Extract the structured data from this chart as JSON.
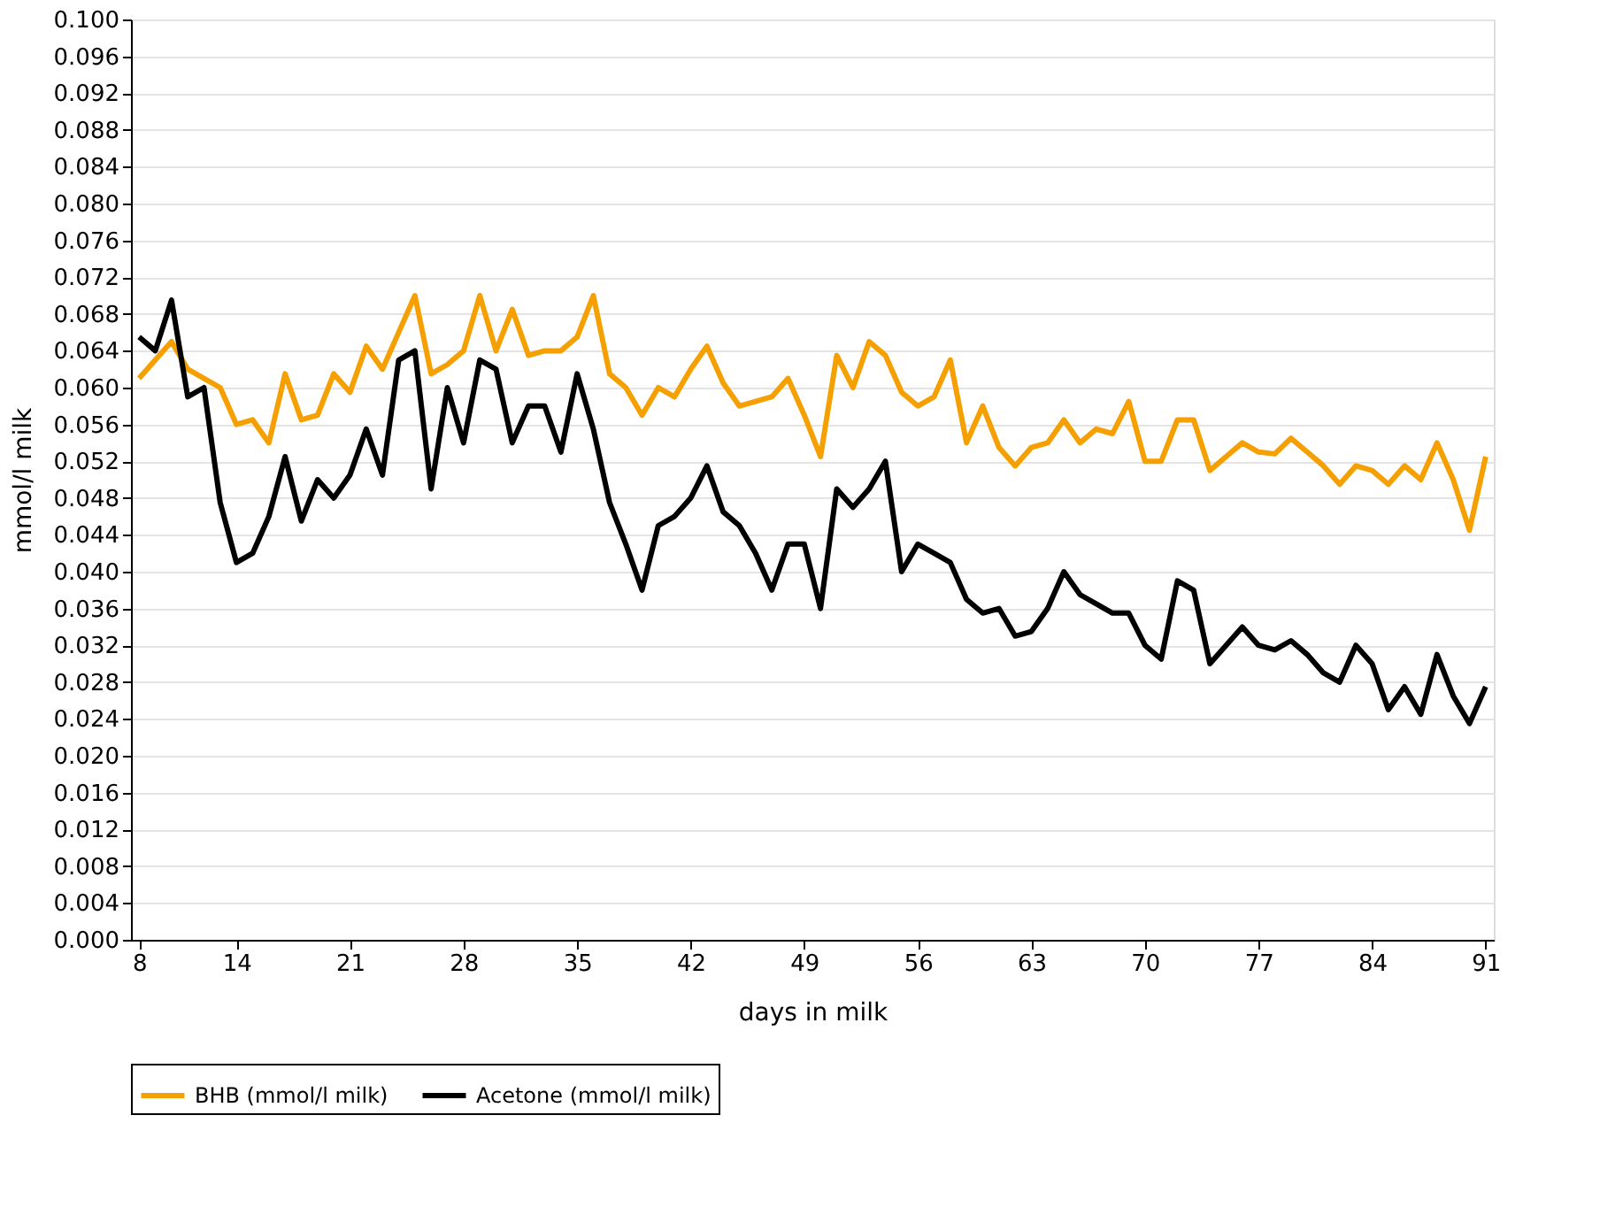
{
  "chart_data": {
    "type": "line",
    "xlabel": "days in milk",
    "ylabel": "mmol/l milk",
    "x": [
      8,
      9,
      10,
      11,
      12,
      13,
      14,
      15,
      16,
      17,
      18,
      19,
      20,
      21,
      22,
      23,
      24,
      25,
      26,
      27,
      28,
      29,
      30,
      31,
      32,
      33,
      34,
      35,
      36,
      37,
      38,
      39,
      40,
      41,
      42,
      43,
      44,
      45,
      46,
      47,
      48,
      49,
      50,
      51,
      52,
      53,
      54,
      55,
      56,
      57,
      58,
      59,
      60,
      61,
      62,
      63,
      64,
      65,
      66,
      67,
      68,
      69,
      70,
      71,
      72,
      73,
      74,
      75,
      76,
      77,
      78,
      79,
      80,
      81,
      82,
      83,
      84,
      85,
      86,
      87,
      88,
      89,
      90,
      91
    ],
    "series": [
      {
        "name": "BHB (mmol/l milk)",
        "color": "#f5a000",
        "values": [
          0.061,
          0.063,
          0.065,
          0.062,
          0.061,
          0.06,
          0.056,
          0.0565,
          0.054,
          0.0615,
          0.0565,
          0.057,
          0.0615,
          0.0595,
          0.0645,
          0.062,
          0.066,
          0.07,
          0.0615,
          0.0625,
          0.064,
          0.07,
          0.064,
          0.0685,
          0.0635,
          0.064,
          0.064,
          0.0655,
          0.07,
          0.0615,
          0.06,
          0.057,
          0.06,
          0.059,
          0.062,
          0.0645,
          0.0605,
          0.058,
          0.0585,
          0.059,
          0.061,
          0.057,
          0.0525,
          0.0635,
          0.06,
          0.065,
          0.0635,
          0.0595,
          0.058,
          0.059,
          0.063,
          0.054,
          0.058,
          0.0535,
          0.0515,
          0.0535,
          0.054,
          0.0565,
          0.054,
          0.0555,
          0.055,
          0.0585,
          0.052,
          0.052,
          0.0565,
          0.0565,
          0.051,
          0.0525,
          0.054,
          0.053,
          0.0528,
          0.0545,
          0.053,
          0.0515,
          0.0495,
          0.0515,
          0.051,
          0.0495,
          0.0515,
          0.05,
          0.054,
          0.05,
          0.0445,
          0.0525
        ]
      },
      {
        "name": "Acetone (mmol/l milk)",
        "color": "#000000",
        "values": [
          0.0655,
          0.064,
          0.0695,
          0.059,
          0.06,
          0.0475,
          0.041,
          0.042,
          0.046,
          0.0525,
          0.0455,
          0.05,
          0.048,
          0.0505,
          0.0555,
          0.0505,
          0.063,
          0.064,
          0.049,
          0.06,
          0.054,
          0.063,
          0.062,
          0.054,
          0.058,
          0.058,
          0.053,
          0.0615,
          0.0555,
          0.0475,
          0.043,
          0.038,
          0.045,
          0.046,
          0.048,
          0.0515,
          0.0465,
          0.045,
          0.042,
          0.038,
          0.043,
          0.043,
          0.036,
          0.049,
          0.047,
          0.049,
          0.052,
          0.04,
          0.043,
          0.042,
          0.041,
          0.037,
          0.0355,
          0.036,
          0.033,
          0.0335,
          0.036,
          0.04,
          0.0375,
          0.0365,
          0.0355,
          0.0355,
          0.032,
          0.0305,
          0.039,
          0.038,
          0.03,
          0.032,
          0.034,
          0.032,
          0.0315,
          0.0325,
          0.031,
          0.029,
          0.028,
          0.032,
          0.03,
          0.025,
          0.0275,
          0.0245,
          0.031,
          0.0265,
          0.0235,
          0.0275
        ]
      }
    ],
    "xlim": [
      7.5,
      91.5
    ],
    "xticks": [
      8,
      14,
      21,
      28,
      35,
      42,
      49,
      56,
      63,
      70,
      77,
      84,
      91
    ],
    "ylim": [
      0,
      0.1
    ],
    "yticks": [
      {
        "value": 0,
        "label": "0.000"
      },
      {
        "value": 0.004,
        "label": "0.004"
      },
      {
        "value": 0.008,
        "label": "0.008"
      },
      {
        "value": 0.012,
        "label": "0.012"
      },
      {
        "value": 0.016,
        "label": "0.016"
      },
      {
        "value": 0.02,
        "label": "0.020"
      },
      {
        "value": 0.024,
        "label": "0.024"
      },
      {
        "value": 0.028,
        "label": "0.028"
      },
      {
        "value": 0.032,
        "label": "0.032"
      },
      {
        "value": 0.036,
        "label": "0.036"
      },
      {
        "value": 0.04,
        "label": "0.040"
      },
      {
        "value": 0.044,
        "label": "0.044"
      },
      {
        "value": 0.048,
        "label": "0.048"
      },
      {
        "value": 0.052,
        "label": "0.052"
      },
      {
        "value": 0.056,
        "label": "0.056"
      },
      {
        "value": 0.06,
        "label": "0.060"
      },
      {
        "value": 0.064,
        "label": "0.064"
      },
      {
        "value": 0.068,
        "label": "0.068"
      },
      {
        "value": 0.072,
        "label": "0.072"
      },
      {
        "value": 0.076,
        "label": "0.076"
      },
      {
        "value": 0.08,
        "label": "0.080"
      },
      {
        "value": 0.084,
        "label": "0.084"
      },
      {
        "value": 0.088,
        "label": "0.088"
      },
      {
        "value": 0.092,
        "label": "0.092"
      },
      {
        "value": 0.096,
        "label": "0.096"
      },
      {
        "value": 0.1,
        "label": "0.100"
      }
    ],
    "grid": "y",
    "legend": "bottom",
    "marker": "none",
    "line_style": "solid"
  }
}
